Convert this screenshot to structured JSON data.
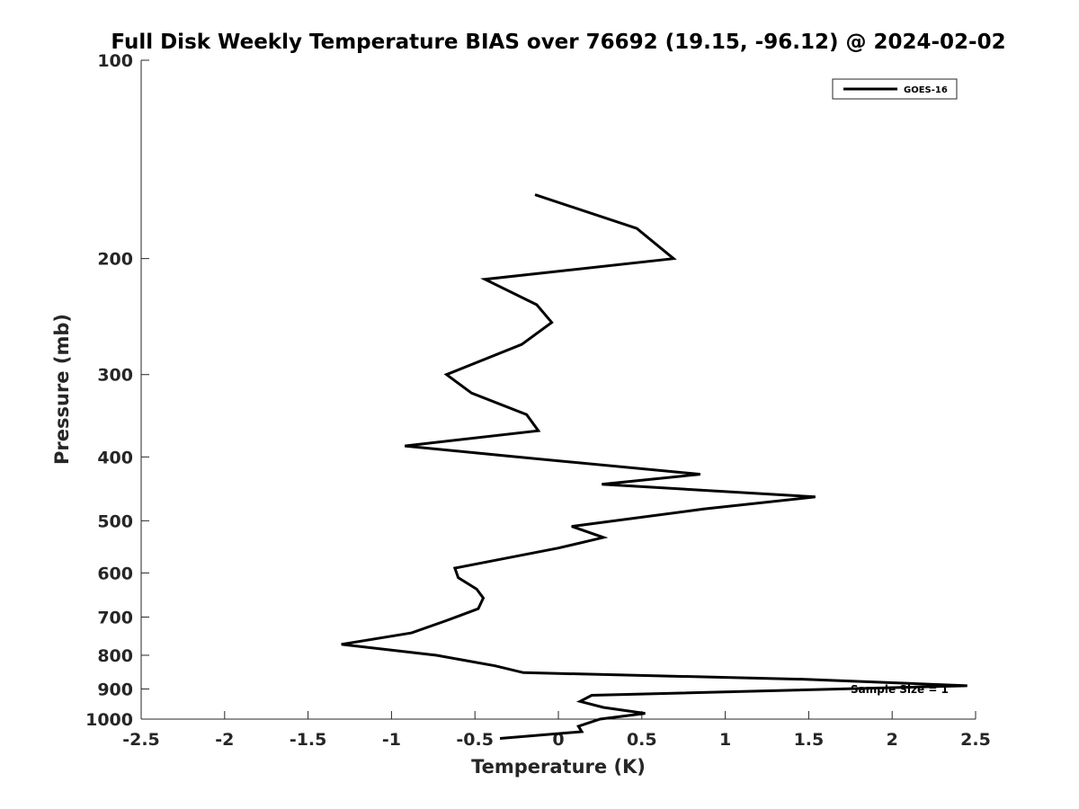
{
  "chart_data": {
    "type": "line",
    "title": "Full Disk Weekly Temperature BIAS over 76692 (19.15, -96.12) @ 2024-02-02",
    "xlabel": "Temperature (K)",
    "ylabel": "Pressure (mb)",
    "xlim": [
      -2.5,
      2.5
    ],
    "ylim": [
      1000,
      100
    ],
    "y_scale": "log",
    "y_reversed": true,
    "grid": false,
    "legend_position": "top-right",
    "x_ticks": [
      -2.5,
      -2,
      -1.5,
      -1,
      -0.5,
      0,
      0.5,
      1,
      1.5,
      2,
      2.5
    ],
    "x_tick_labels": [
      "-2.5",
      "-2",
      "-1.5",
      "-1",
      "-0.5",
      "0",
      "0.5",
      "1",
      "1.5",
      "2",
      "2.5"
    ],
    "y_ticks": [
      100,
      200,
      300,
      400,
      500,
      600,
      700,
      800,
      900,
      1000
    ],
    "y_tick_labels": [
      "100",
      "200",
      "300",
      "400",
      "500",
      "600",
      "700",
      "800",
      "900",
      "1000"
    ],
    "series": [
      {
        "name": "GOES-16",
        "color": "#000000",
        "x": [
          -0.14,
          0.47,
          0.69,
          -0.44,
          -0.13,
          -0.04,
          -0.22,
          -0.67,
          -0.52,
          -0.19,
          -0.12,
          -0.92,
          -0.25,
          0.85,
          0.26,
          1.54,
          0.87,
          0.08,
          0.27,
          0.0,
          -0.62,
          -0.6,
          -0.49,
          -0.45,
          -0.48,
          -0.68,
          -0.88,
          -1.3,
          -0.73,
          -0.38,
          -0.21,
          1.48,
          2.45,
          0.2,
          0.13,
          0.27,
          0.52,
          0.25,
          0.12,
          0.14,
          -0.35
        ],
        "y": [
          160,
          180,
          200,
          215,
          235,
          250,
          270,
          300,
          320,
          345,
          365,
          385,
          400,
          425,
          440,
          460,
          480,
          510,
          530,
          550,
          590,
          610,
          635,
          655,
          680,
          710,
          740,
          770,
          800,
          830,
          850,
          870,
          890,
          920,
          940,
          960,
          980,
          1000,
          1025,
          1045,
          1070
        ]
      }
    ],
    "annotations": [
      "Sample Size = 1"
    ]
  }
}
